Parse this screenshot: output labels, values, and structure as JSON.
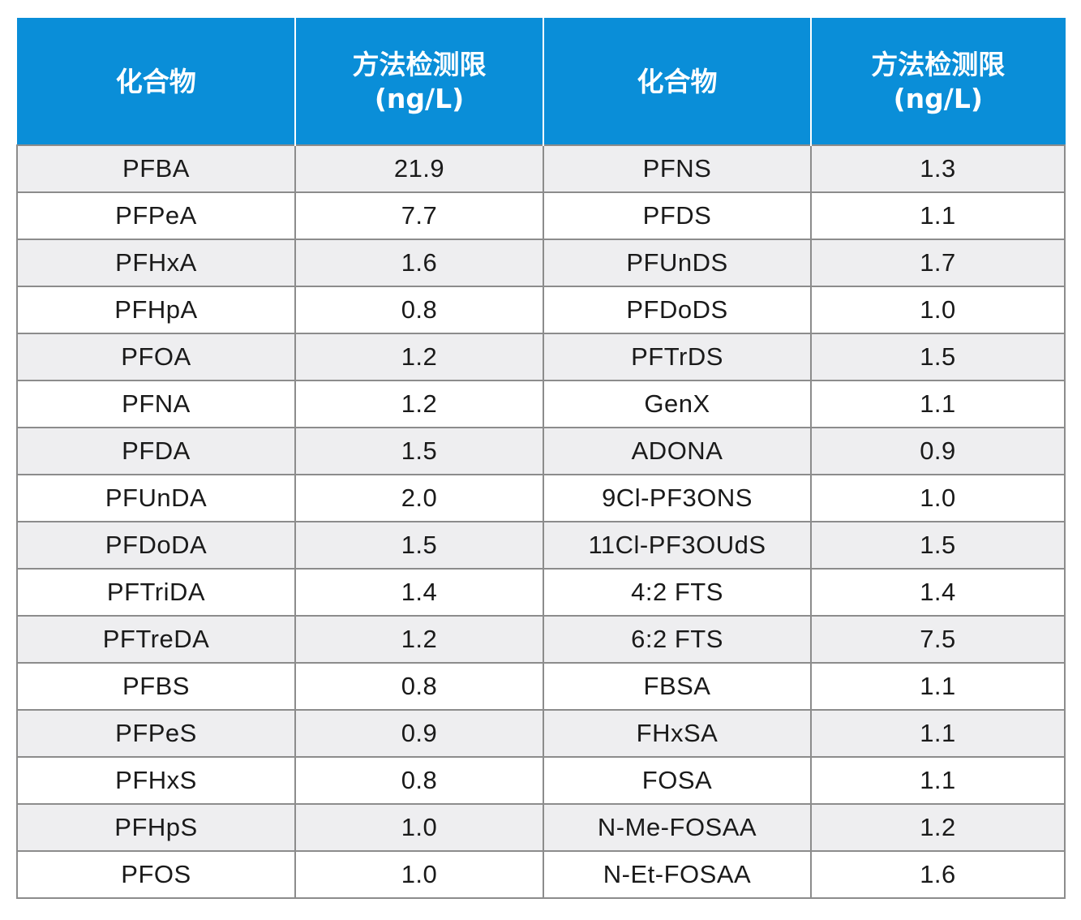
{
  "header": {
    "col1": "化合物",
    "col2_line1": "方法检测限",
    "col2_line2": "(ng/L)",
    "col3": "化合物",
    "col4_line1": "方法检测限",
    "col4_line2": "(ng/L)"
  },
  "rows": [
    [
      "PFBA",
      "21.9",
      "PFNS",
      "1.3"
    ],
    [
      "PFPeA",
      "7.7",
      "PFDS",
      "1.1"
    ],
    [
      "PFHxA",
      "1.6",
      "PFUnDS",
      "1.7"
    ],
    [
      "PFHpA",
      "0.8",
      "PFDoDS",
      "1.0"
    ],
    [
      "PFOA",
      "1.2",
      "PFTrDS",
      "1.5"
    ],
    [
      "PFNA",
      "1.2",
      "GenX",
      "1.1"
    ],
    [
      "PFDA",
      "1.5",
      "ADONA",
      "0.9"
    ],
    [
      "PFUnDA",
      "2.0",
      "9Cl-PF3ONS",
      "1.0"
    ],
    [
      "PFDoDA",
      "1.5",
      "11Cl-PF3OUdS",
      "1.5"
    ],
    [
      "PFTriDA",
      "1.4",
      "4:2 FTS",
      "1.4"
    ],
    [
      "PFTreDA",
      "1.2",
      "6:2 FTS",
      "7.5"
    ],
    [
      "PFBS",
      "0.8",
      "FBSA",
      "1.1"
    ],
    [
      "PFPeS",
      "0.9",
      "FHxSA",
      "1.1"
    ],
    [
      "PFHxS",
      "0.8",
      "FOSA",
      "1.1"
    ],
    [
      "PFHpS",
      "1.0",
      "N-Me-FOSAA",
      "1.2"
    ],
    [
      "PFOS",
      "1.0",
      "N-Et-FOSAA",
      "1.6"
    ]
  ],
  "colors": {
    "header_bg": "#0a8ed8",
    "header_text": "#ffffff",
    "stripe_bg": "#eeeef0",
    "grid_line": "#8c8c8c"
  }
}
